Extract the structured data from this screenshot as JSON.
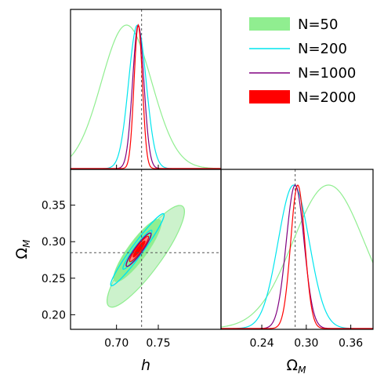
{
  "chart_data": {
    "type": "corner",
    "truth": {
      "h": 0.73,
      "Omega_M": 0.285
    },
    "axes": {
      "h": {
        "label": "h",
        "range": [
          0.645,
          0.825
        ],
        "ticks": [
          0.7,
          0.75
        ],
        "tick_labels": [
          "0.70",
          "0.75"
        ]
      },
      "Omega_M": {
        "label_main": "Ω",
        "label_sub": "M",
        "range": [
          0.18,
          0.399
        ],
        "ticks": [
          0.2,
          0.25,
          0.3,
          0.35
        ],
        "tick_labels": [
          "0.20",
          "0.25",
          "0.30",
          "0.35"
        ],
        "diag_range": [
          0.185,
          0.39
        ],
        "diag_ticks": [
          0.24,
          0.3,
          0.36
        ],
        "diag_tick_labels": [
          "0.24",
          "0.30",
          "0.36"
        ]
      }
    },
    "legend": {
      "placement": "top-right",
      "entries": [
        {
          "label": "N=50",
          "color": "#90ee90",
          "style": "fill"
        },
        {
          "label": "N=200",
          "color": "#00e5ee",
          "style": "line"
        },
        {
          "label": "N=1000",
          "color": "#800080",
          "style": "line"
        },
        {
          "label": "N=2000",
          "color": "#ff0000",
          "style": "fill"
        }
      ]
    },
    "series": [
      {
        "name": "N=50",
        "color": "#90ee90",
        "h_marginal": {
          "mean": 0.712,
          "sigma": 0.03
        },
        "omega_marginal": {
          "mean": 0.33,
          "sigma": 0.048
        },
        "contours": [
          {
            "center": [
              0.735,
              0.28
            ],
            "width": 0.036,
            "length": 0.17,
            "angle": -0.84,
            "level": "95%",
            "fill": "#ccf2cc"
          },
          {
            "center": [
              0.725,
              0.288
            ],
            "width": 0.022,
            "length": 0.104,
            "angle": -0.84,
            "level": "68%",
            "fill": "#90ee90"
          }
        ]
      },
      {
        "name": "N=200",
        "color": "#00e5ee",
        "h_marginal": {
          "mean": 0.725,
          "sigma": 0.0105
        },
        "omega_marginal": {
          "mean": 0.283,
          "sigma": 0.021
        },
        "contours": [
          {
            "center": [
              0.725,
              0.289
            ],
            "width": 0.0138,
            "length": 0.122,
            "angle": -0.84,
            "level": "95%"
          },
          {
            "center": [
              0.725,
              0.289
            ],
            "width": 0.0084,
            "length": 0.066,
            "angle": -0.84,
            "level": "68%"
          }
        ]
      },
      {
        "name": "N=1000",
        "color": "#800080",
        "h_marginal": {
          "mean": 0.726,
          "sigma": 0.0068
        },
        "omega_marginal": {
          "mean": 0.285,
          "sigma": 0.012
        },
        "contours": [
          {
            "center": [
              0.7265,
              0.289
            ],
            "width": 0.009,
            "length": 0.056,
            "angle": -0.84,
            "level": "95%"
          },
          {
            "center": [
              0.7265,
              0.289
            ],
            "width": 0.006,
            "length": 0.036,
            "angle": -0.84,
            "level": "68%"
          }
        ]
      },
      {
        "name": "N=2000",
        "color": "#ff0000",
        "h_marginal": {
          "mean": 0.726,
          "sigma": 0.005
        },
        "omega_marginal": {
          "mean": 0.2885,
          "sigma": 0.0095
        },
        "contours": [
          {
            "center": [
              0.727,
              0.29
            ],
            "width": 0.0068,
            "length": 0.043,
            "angle": -0.84,
            "level": "95%",
            "fill": "#ff7f7f"
          },
          {
            "center": [
              0.727,
              0.29
            ],
            "width": 0.0042,
            "length": 0.027,
            "angle": -0.84,
            "level": "68%",
            "fill": "#ff0000"
          }
        ]
      }
    ]
  }
}
